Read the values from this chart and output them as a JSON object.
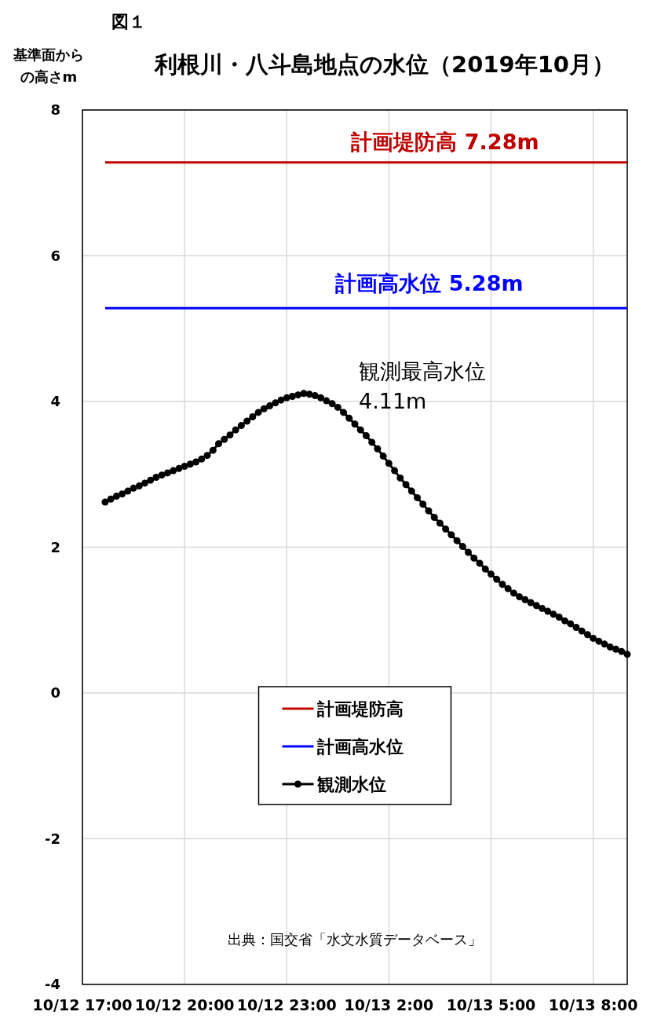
{
  "chart_data": {
    "type": "line",
    "title": "利根川・八斗島地点の水位（2019年10月）",
    "ylabel": "基準面からの高さm",
    "xlim": [
      "2019-10-12T17:00",
      "2019-10-13T09:00"
    ],
    "xticks": [
      {
        "value": "2019-10-12T17:00",
        "label": "10/12 17:00"
      },
      {
        "value": "2019-10-12T20:00",
        "label": "10/12 20:00"
      },
      {
        "value": "2019-10-12T23:00",
        "label": "10/12 23:00"
      },
      {
        "value": "2019-10-13T02:00",
        "label": "10/13 2:00"
      },
      {
        "value": "2019-10-13T05:00",
        "label": "10/13 5:00"
      },
      {
        "value": "2019-10-13T08:00",
        "label": "10/13 8:00"
      }
    ],
    "ylim": [
      -4,
      8
    ],
    "yticks": [
      -4,
      -2,
      0,
      2,
      4,
      6,
      8
    ],
    "grid": true,
    "legend": "bottom",
    "series": [
      {
        "name": "計画堤防高",
        "color": "#c00000",
        "marker": "none",
        "x": [
          "2019-10-12T17:40",
          "2019-10-13T09:00"
        ],
        "values": [
          7.28,
          7.28
        ]
      },
      {
        "name": "計画高水位",
        "color": "#0000ff",
        "marker": "none",
        "x": [
          "2019-10-12T17:40",
          "2019-10-13T09:00"
        ],
        "values": [
          5.28,
          5.28
        ]
      },
      {
        "name": "観測水位",
        "color": "#000000",
        "marker": "circle",
        "x": [
          "2019-10-12T17:40",
          "2019-10-12T17:50",
          "2019-10-12T18:00",
          "2019-10-12T18:10",
          "2019-10-12T18:20",
          "2019-10-12T18:30",
          "2019-10-12T18:40",
          "2019-10-12T18:50",
          "2019-10-12T19:00",
          "2019-10-12T19:10",
          "2019-10-12T19:20",
          "2019-10-12T19:30",
          "2019-10-12T19:40",
          "2019-10-12T19:50",
          "2019-10-12T20:00",
          "2019-10-12T20:10",
          "2019-10-12T20:20",
          "2019-10-12T20:30",
          "2019-10-12T20:40",
          "2019-10-12T20:50",
          "2019-10-12T21:00",
          "2019-10-12T21:10",
          "2019-10-12T21:20",
          "2019-10-12T21:30",
          "2019-10-12T21:40",
          "2019-10-12T21:50",
          "2019-10-12T22:00",
          "2019-10-12T22:10",
          "2019-10-12T22:20",
          "2019-10-12T22:30",
          "2019-10-12T22:40",
          "2019-10-12T22:50",
          "2019-10-12T23:00",
          "2019-10-12T23:10",
          "2019-10-12T23:20",
          "2019-10-12T23:30",
          "2019-10-12T23:40",
          "2019-10-12T23:50",
          "2019-10-13T00:00",
          "2019-10-13T00:10",
          "2019-10-13T00:20",
          "2019-10-13T00:30",
          "2019-10-13T00:40",
          "2019-10-13T00:50",
          "2019-10-13T01:00",
          "2019-10-13T01:10",
          "2019-10-13T01:20",
          "2019-10-13T01:30",
          "2019-10-13T01:40",
          "2019-10-13T01:50",
          "2019-10-13T02:00",
          "2019-10-13T02:10",
          "2019-10-13T02:20",
          "2019-10-13T02:30",
          "2019-10-13T02:40",
          "2019-10-13T02:50",
          "2019-10-13T03:00",
          "2019-10-13T03:10",
          "2019-10-13T03:20",
          "2019-10-13T03:30",
          "2019-10-13T03:40",
          "2019-10-13T03:50",
          "2019-10-13T04:00",
          "2019-10-13T04:10",
          "2019-10-13T04:20",
          "2019-10-13T04:30",
          "2019-10-13T04:40",
          "2019-10-13T04:50",
          "2019-10-13T05:00",
          "2019-10-13T05:10",
          "2019-10-13T05:20",
          "2019-10-13T05:30",
          "2019-10-13T05:40",
          "2019-10-13T05:50",
          "2019-10-13T06:00",
          "2019-10-13T06:10",
          "2019-10-13T06:20",
          "2019-10-13T06:30",
          "2019-10-13T06:40",
          "2019-10-13T06:50",
          "2019-10-13T07:00",
          "2019-10-13T07:10",
          "2019-10-13T07:20",
          "2019-10-13T07:30",
          "2019-10-13T07:40",
          "2019-10-13T07:50",
          "2019-10-13T08:00",
          "2019-10-13T08:10",
          "2019-10-13T08:20",
          "2019-10-13T08:30",
          "2019-10-13T08:40",
          "2019-10-13T08:50",
          "2019-10-13T09:00"
        ],
        "values": [
          2.62,
          2.66,
          2.7,
          2.73,
          2.77,
          2.81,
          2.84,
          2.88,
          2.92,
          2.96,
          2.99,
          3.02,
          3.05,
          3.08,
          3.11,
          3.14,
          3.17,
          3.21,
          3.26,
          3.33,
          3.42,
          3.48,
          3.54,
          3.61,
          3.67,
          3.73,
          3.79,
          3.85,
          3.9,
          3.94,
          3.98,
          4.02,
          4.05,
          4.07,
          4.09,
          4.11,
          4.1,
          4.08,
          4.05,
          4.01,
          3.97,
          3.92,
          3.85,
          3.77,
          3.69,
          3.61,
          3.53,
          3.44,
          3.35,
          3.25,
          3.15,
          3.05,
          2.95,
          2.86,
          2.77,
          2.68,
          2.59,
          2.5,
          2.41,
          2.33,
          2.25,
          2.17,
          2.09,
          2.01,
          1.93,
          1.85,
          1.78,
          1.7,
          1.63,
          1.56,
          1.49,
          1.43,
          1.37,
          1.32,
          1.28,
          1.24,
          1.2,
          1.16,
          1.12,
          1.08,
          1.04,
          0.99,
          0.95,
          0.9,
          0.85,
          0.8,
          0.75,
          0.71,
          0.67,
          0.63,
          0.6,
          0.57,
          0.53
        ]
      }
    ],
    "annotations": [
      "図１",
      "計画堤防高 7.28m",
      "計画高水位 5.28m",
      "観測最高水位 4.11m",
      "出典：国交省「水文水質データベース」"
    ]
  }
}
